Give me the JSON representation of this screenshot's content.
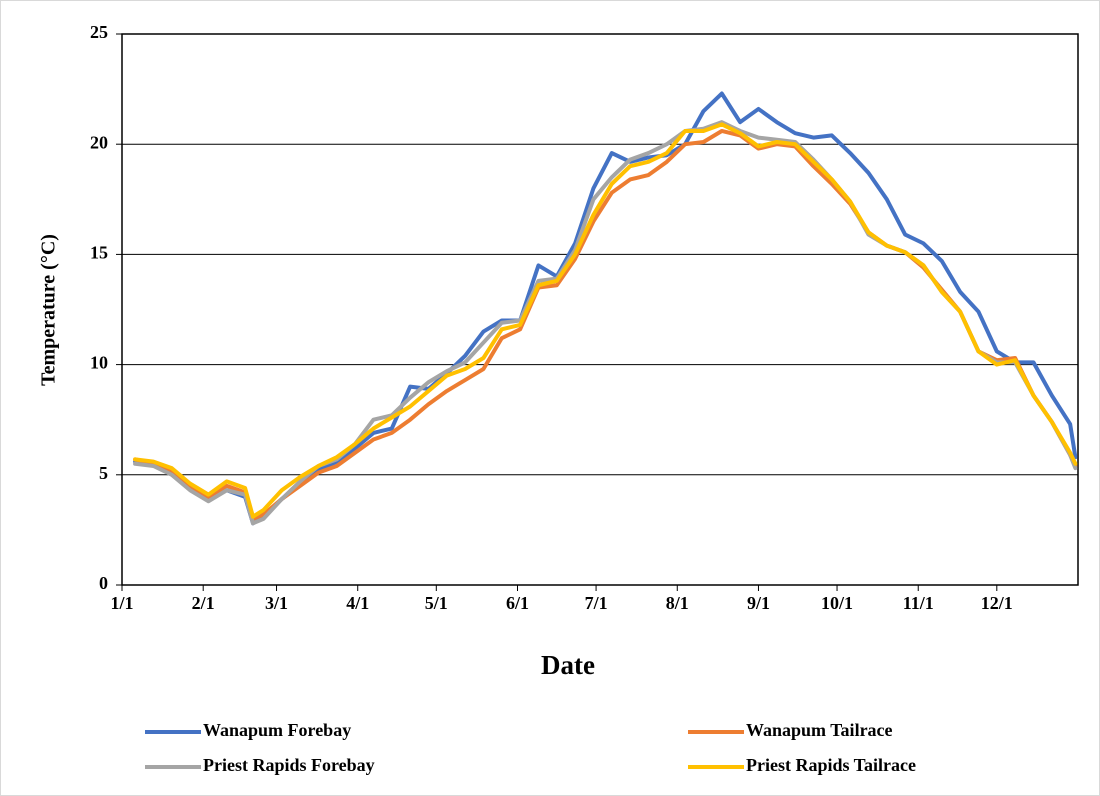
{
  "chart_data": {
    "type": "line",
    "x_label": "Date",
    "y_label": "Temperature (°C)",
    "x": [
      5,
      12,
      19,
      26,
      33,
      40,
      47,
      50,
      54,
      61,
      68,
      75,
      82,
      89,
      96,
      103,
      110,
      117,
      124,
      131,
      138,
      145,
      152,
      159,
      166,
      173,
      180,
      187,
      194,
      201,
      208,
      215,
      222,
      229,
      236,
      243,
      250,
      257,
      264,
      271,
      278,
      285,
      292,
      299,
      306,
      313,
      320,
      327,
      334,
      341,
      348,
      355,
      362,
      364
    ],
    "series": [
      {
        "name": "Wanapum Forebay",
        "color": "#4472c4",
        "values": [
          5.6,
          5.5,
          5.1,
          4.4,
          3.9,
          4.3,
          4.0,
          2.8,
          3.1,
          3.9,
          4.6,
          5.2,
          5.6,
          6.2,
          6.9,
          7.1,
          9.0,
          8.9,
          9.6,
          10.4,
          11.5,
          12.0,
          12.0,
          14.5,
          14.0,
          15.5,
          18.0,
          19.6,
          19.2,
          19.4,
          19.5,
          20.0,
          21.5,
          22.3,
          21.0,
          21.6,
          21.0,
          20.5,
          20.3,
          20.4,
          19.6,
          18.7,
          17.5,
          15.9,
          15.5,
          14.7,
          13.3,
          12.4,
          10.6,
          10.1,
          10.1,
          8.6,
          7.3,
          5.8
        ]
      },
      {
        "name": "Wanapum Tailrace",
        "color": "#ed7d31",
        "values": [
          5.7,
          5.5,
          5.2,
          4.5,
          4.0,
          4.5,
          4.2,
          3.0,
          3.2,
          3.9,
          4.5,
          5.1,
          5.4,
          6.0,
          6.6,
          6.9,
          7.5,
          8.2,
          8.8,
          9.3,
          9.8,
          11.2,
          11.6,
          13.5,
          13.6,
          14.8,
          16.5,
          17.8,
          18.4,
          18.6,
          19.2,
          20.0,
          20.1,
          20.6,
          20.4,
          19.8,
          20.0,
          19.9,
          19.0,
          18.2,
          17.3,
          16.0,
          15.4,
          15.1,
          14.4,
          13.4,
          12.4,
          10.6,
          10.2,
          10.3,
          8.6,
          7.4,
          5.9,
          5.4
        ]
      },
      {
        "name": "Priest Rapids Forebay",
        "color": "#a5a5a5",
        "values": [
          5.5,
          5.4,
          5.0,
          4.3,
          3.8,
          4.3,
          4.1,
          2.8,
          3.0,
          3.9,
          4.7,
          5.4,
          5.7,
          6.4,
          7.5,
          7.7,
          8.5,
          9.2,
          9.7,
          10.1,
          11.0,
          11.9,
          12.0,
          13.8,
          13.9,
          15.2,
          17.5,
          18.5,
          19.3,
          19.6,
          20.0,
          20.6,
          20.7,
          21.0,
          20.6,
          20.3,
          20.2,
          20.1,
          19.3,
          18.4,
          17.4,
          15.9,
          15.4,
          15.1,
          14.5,
          13.3,
          12.4,
          10.6,
          10.1,
          10.1,
          8.6,
          7.4,
          5.9,
          5.3
        ]
      },
      {
        "name": "Priest Rapids Tailrace",
        "color": "#ffc000",
        "values": [
          5.7,
          5.6,
          5.3,
          4.6,
          4.1,
          4.7,
          4.4,
          3.1,
          3.4,
          4.3,
          4.9,
          5.4,
          5.8,
          6.4,
          7.1,
          7.6,
          8.1,
          8.8,
          9.5,
          9.8,
          10.3,
          11.6,
          11.8,
          13.6,
          13.8,
          15.0,
          16.8,
          18.2,
          19.0,
          19.2,
          19.6,
          20.6,
          20.6,
          20.9,
          20.5,
          19.9,
          20.1,
          20.0,
          19.2,
          18.4,
          17.4,
          16.0,
          15.4,
          15.1,
          14.5,
          13.3,
          12.4,
          10.6,
          10.0,
          10.2,
          8.6,
          7.4,
          6.0,
          5.5
        ]
      }
    ],
    "xlim": [
      0,
      365
    ],
    "xticks": [
      {
        "value": 0,
        "label": "1/1"
      },
      {
        "value": 31,
        "label": "2/1"
      },
      {
        "value": 59,
        "label": "3/1"
      },
      {
        "value": 90,
        "label": "4/1"
      },
      {
        "value": 120,
        "label": "5/1"
      },
      {
        "value": 151,
        "label": "6/1"
      },
      {
        "value": 181,
        "label": "7/1"
      },
      {
        "value": 212,
        "label": "8/1"
      },
      {
        "value": 243,
        "label": "9/1"
      },
      {
        "value": 273,
        "label": "10/1"
      },
      {
        "value": 304,
        "label": "11/1"
      },
      {
        "value": 334,
        "label": "12/1"
      }
    ],
    "ylim": [
      0,
      25
    ],
    "yticks": [
      0,
      5,
      10,
      15,
      20,
      25
    ],
    "grid": true,
    "legend": "bottom"
  }
}
